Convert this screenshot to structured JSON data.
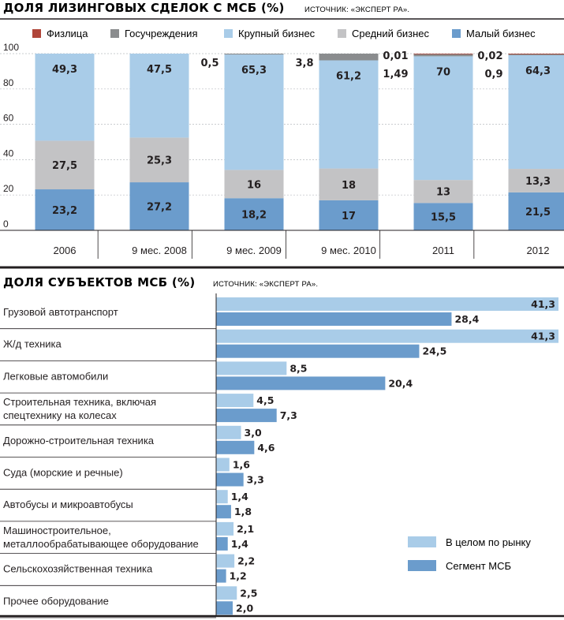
{
  "colors": {
    "fizlica": "#b0463a",
    "gos": "#8a8c8e",
    "large": "#a9cce8",
    "medium": "#c3c3c5",
    "small": "#6b9ccc",
    "market": "#a9cce8",
    "msb": "#6b9ccc"
  },
  "chart_data": [
    {
      "type": "bar",
      "stacked": true,
      "title": "ДОЛЯ ЛИЗИНГОВЫХ СДЕЛОК С МСБ (%)",
      "source": "ИСТОЧНИК: «ЭКСПЕРТ РА».",
      "categories": [
        "2006",
        "9 мес. 2008",
        "9 мес. 2009",
        "9 мес. 2010",
        "2011",
        "2012"
      ],
      "ylim": [
        0,
        100
      ],
      "yticks": [
        "0",
        "20",
        "40",
        "60",
        "80",
        "100"
      ],
      "legend_placement": "top",
      "legend_order": [
        "Физлица",
        "Госучреждения",
        "Крупный бизнес",
        "Средний бизнес",
        "Малый бизнес"
      ],
      "series": [
        {
          "name": "Малый бизнес",
          "key": "small",
          "values": [
            23.2,
            27.2,
            18.2,
            17,
            15.5,
            21.5
          ],
          "labels": [
            "23,2",
            "27,2",
            "18,2",
            "17",
            "15,5",
            "21,5"
          ]
        },
        {
          "name": "Средний бизнес",
          "key": "medium",
          "values": [
            27.5,
            25.3,
            16,
            18,
            13,
            13.3
          ],
          "labels": [
            "27,5",
            "25,3",
            "16",
            "18",
            "13",
            "13,3"
          ]
        },
        {
          "name": "Крупный бизнес",
          "key": "large",
          "values": [
            49.3,
            47.5,
            65.3,
            61.2,
            70,
            64.3
          ],
          "labels": [
            "49,3",
            "47,5",
            "65,3",
            "61,2",
            "70",
            "64,3"
          ]
        },
        {
          "name": "Госучреждения",
          "key": "gos",
          "values": [
            0,
            0,
            0.5,
            3.8,
            1.49,
            0.9
          ],
          "labels": [
            "",
            "",
            "0,5",
            "3,8",
            "1,49",
            "0,9"
          ]
        },
        {
          "name": "Физлица",
          "key": "fizlica",
          "values": [
            0,
            0,
            0,
            0,
            0.01,
            0.02
          ],
          "labels": [
            "",
            "",
            "",
            "",
            "0,01",
            "0,02"
          ]
        }
      ]
    },
    {
      "type": "bar",
      "orientation": "horizontal",
      "title": "ДОЛЯ СУБЪЕКТОВ МСБ (%)",
      "source": "ИСТОЧНИК: «ЭКСПЕРТ РА».",
      "xlim": [
        0,
        41.3
      ],
      "legend_placement": "bottom-right",
      "categories": [
        [
          "Грузовой автотранспорт"
        ],
        [
          "Ж/д техника"
        ],
        [
          "Легковые автомобили"
        ],
        [
          "Строительная техника, включая",
          "спецтехнику на колесах"
        ],
        [
          "Дорожно-строительная техника"
        ],
        [
          "Суда (морские и речные)"
        ],
        [
          "Автобусы и микроавтобусы"
        ],
        [
          "Машиностроительное,",
          "металлообрабатывающее оборудование"
        ],
        [
          "Сельскохозяйственная техника"
        ],
        [
          "Прочее оборудование"
        ]
      ],
      "series": [
        {
          "name": "В целом по рынку",
          "key": "market",
          "values": [
            41.3,
            41.3,
            8.5,
            4.5,
            3.0,
            1.6,
            1.4,
            2.1,
            2.2,
            2.5
          ],
          "labels": [
            "41,3",
            "41,3",
            "8,5",
            "4,5",
            "3,0",
            "1,6",
            "1,4",
            "2,1",
            "2,2",
            "2,5"
          ]
        },
        {
          "name": "Сегмент МСБ",
          "key": "msb",
          "values": [
            28.4,
            24.5,
            20.4,
            7.3,
            4.6,
            3.3,
            1.8,
            1.4,
            1.2,
            2.0
          ],
          "labels": [
            "28,4",
            "24,5",
            "20,4",
            "7,3",
            "4,6",
            "3,3",
            "1,8",
            "1,4",
            "1,2",
            "2,0"
          ]
        }
      ]
    }
  ]
}
